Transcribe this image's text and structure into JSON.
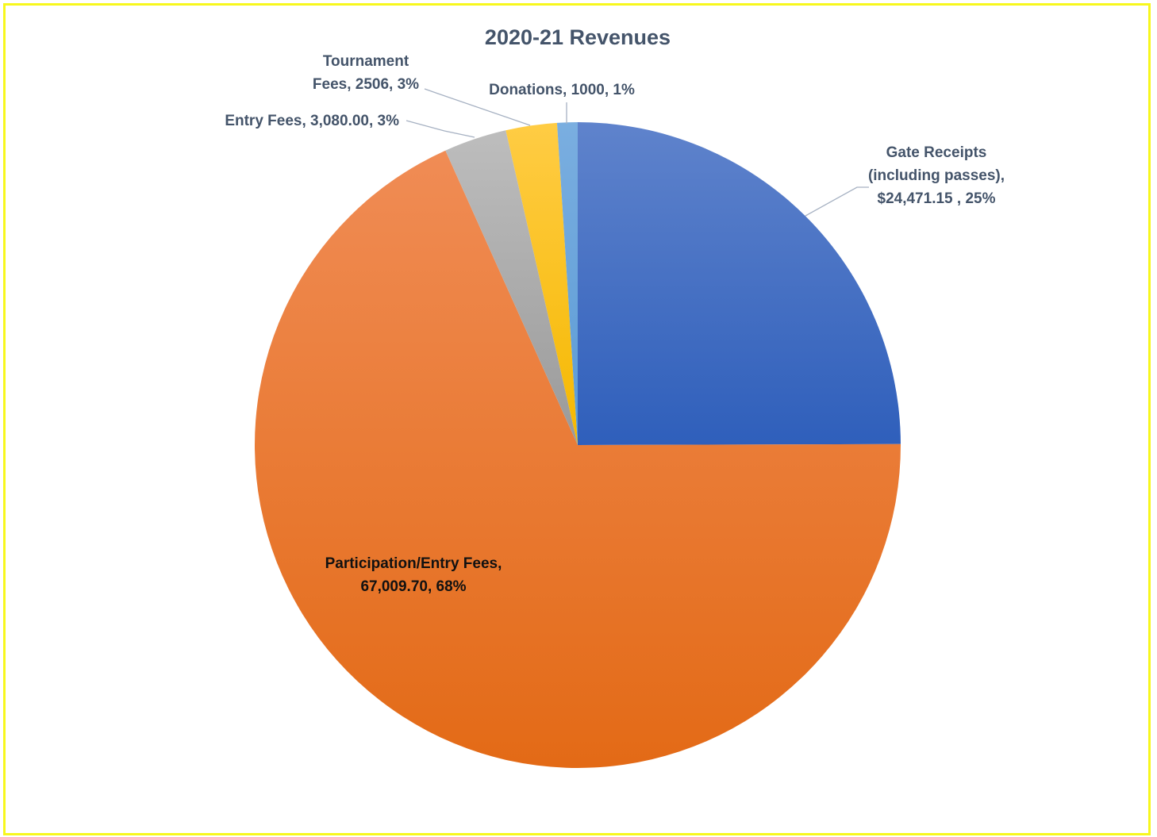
{
  "chart_data": {
    "type": "pie",
    "title": "2020-21 Revenues",
    "slices": [
      {
        "name": "Gate Receipts (including passes)",
        "value": 24471.15,
        "percent": 25,
        "label_lines": [
          "Gate Receipts",
          "(including passes),",
          "$24,471.15 , 25%"
        ],
        "color": "#4472c4"
      },
      {
        "name": "Participation/Entry Fees",
        "value": 67009.7,
        "percent": 68,
        "label_lines": [
          "Participation/Entry Fees,",
          "67,009.70, 68%"
        ],
        "color": "#ed7d31"
      },
      {
        "name": "Entry Fees",
        "value": 3080.0,
        "percent": 3,
        "label_lines": [
          "Entry Fees, 3,080.00, 3%"
        ],
        "color": "#a5a5a5"
      },
      {
        "name": "Tournament Fees",
        "value": 2506,
        "percent": 3,
        "label_lines": [
          "Tournament",
          "Fees, 2506, 3%"
        ],
        "color": "#ffc000"
      },
      {
        "name": "Donations",
        "value": 1000,
        "percent": 1,
        "label_lines": [
          "Donations, 1000, 1%"
        ],
        "color": "#5b9bd5"
      }
    ],
    "legend": "none"
  }
}
